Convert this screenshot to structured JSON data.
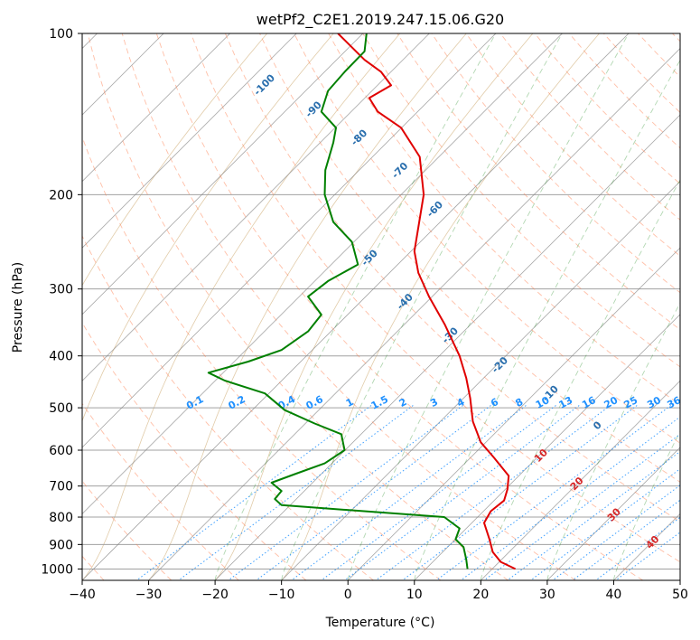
{
  "chart_data": {
    "type": "line",
    "subtype": "skew-t log-p diagram",
    "title": "wetPf2_C2E1.2019.247.15.06.G20",
    "xlabel": "Temperature (°C)",
    "ylabel": "Pressure (hPa)",
    "xlim": [
      -40,
      50
    ],
    "ylim": [
      1050,
      100
    ],
    "y_scale": "log",
    "x_ticks": [
      "−40",
      "−30",
      "−20",
      "−10",
      "0",
      "10",
      "20",
      "30",
      "40",
      "50"
    ],
    "x_tick_values": [
      -40,
      -30,
      -20,
      -10,
      0,
      10,
      20,
      30,
      40,
      50
    ],
    "y_ticks": [
      "100",
      "200",
      "300",
      "400",
      "500",
      "600",
      "700",
      "800",
      "900",
      "1000"
    ],
    "y_tick_values": [
      100,
      200,
      300,
      400,
      500,
      600,
      700,
      800,
      900,
      1000
    ],
    "grid": true,
    "series": [
      {
        "color": "#e00000",
        "points": [
          [
            25.2,
            1000
          ],
          [
            23.0,
            970
          ],
          [
            21.8,
            930
          ],
          [
            21.3,
            880
          ],
          [
            20.5,
            820
          ],
          [
            21.5,
            780
          ],
          [
            23.5,
            745
          ],
          [
            24.0,
            710
          ],
          [
            24.2,
            670
          ],
          [
            22.0,
            620
          ],
          [
            20.0,
            580
          ],
          [
            18.8,
            530
          ],
          [
            18.4,
            480
          ],
          [
            17.8,
            440
          ],
          [
            16.8,
            400
          ],
          [
            14.6,
            350
          ],
          [
            12.2,
            310
          ],
          [
            10.6,
            280
          ],
          [
            10.0,
            255
          ],
          [
            10.6,
            230
          ],
          [
            11.4,
            200
          ],
          [
            10.8,
            170
          ],
          [
            8.0,
            150
          ],
          [
            4.5,
            140
          ],
          [
            3.2,
            132
          ],
          [
            6.5,
            125
          ],
          [
            5.0,
            118
          ],
          [
            2.5,
            112
          ],
          [
            -1.5,
            100
          ]
        ]
      },
      {
        "color": "#008000",
        "points": [
          [
            18.0,
            1000
          ],
          [
            17.8,
            960
          ],
          [
            17.4,
            910
          ],
          [
            16.2,
            880
          ],
          [
            16.8,
            840
          ],
          [
            14.5,
            800
          ],
          [
            -10.0,
            760
          ],
          [
            -11.0,
            740
          ],
          [
            -10.0,
            715
          ],
          [
            -11.5,
            690
          ],
          [
            -8.0,
            665
          ],
          [
            -3.5,
            635
          ],
          [
            -0.5,
            600
          ],
          [
            -1.0,
            560
          ],
          [
            -5.0,
            535
          ],
          [
            -9.5,
            505
          ],
          [
            -12.5,
            470
          ],
          [
            -18.5,
            445
          ],
          [
            -21.0,
            430
          ],
          [
            -15.0,
            410
          ],
          [
            -10.0,
            390
          ],
          [
            -6.0,
            360
          ],
          [
            -4.0,
            335
          ],
          [
            -6.0,
            310
          ],
          [
            -3.0,
            290
          ],
          [
            1.5,
            270
          ],
          [
            0.6,
            245
          ],
          [
            -2.2,
            225
          ],
          [
            -3.5,
            200
          ],
          [
            -3.4,
            180
          ],
          [
            -2.2,
            160
          ],
          [
            -1.8,
            150
          ],
          [
            -4.0,
            140
          ],
          [
            -3.0,
            128
          ],
          [
            -0.5,
            118
          ],
          [
            2.5,
            108
          ],
          [
            2.8,
            100
          ]
        ]
      }
    ],
    "reference_lines": {
      "isotherms": {
        "color": "#808080",
        "style": "solid"
      },
      "isobars": {
        "color": "#a0a0a0",
        "style": "solid"
      },
      "dry_adiabats": {
        "color": "#ff7f50",
        "style": "dashed"
      },
      "moist_adiabats": {
        "color": "#228b22",
        "style": "dashed"
      },
      "mixing_ratio": {
        "color": "#1e90ff",
        "style": "dotted"
      },
      "theta_e_background": {
        "color": "#c8a060",
        "style": "solid"
      }
    },
    "annotations": {
      "wet_bulb_isotherms": {
        "color": "#2a6fae",
        "items": [
          {
            "label": "-100",
            "t": -100,
            "p": 126
          },
          {
            "label": "-90",
            "t": -90,
            "p": 140
          },
          {
            "label": "-80",
            "t": -80,
            "p": 158
          },
          {
            "label": "-70",
            "t": -70,
            "p": 182
          },
          {
            "label": "-60",
            "t": -60,
            "p": 215
          },
          {
            "label": "-50",
            "t": -50,
            "p": 265
          },
          {
            "label": "-40",
            "t": -40,
            "p": 320
          },
          {
            "label": "-30",
            "t": -30,
            "p": 370
          },
          {
            "label": "-20",
            "t": -20,
            "p": 420
          },
          {
            "label": "-10",
            "t": -10,
            "p": 475
          },
          {
            "label": "0",
            "t": 0,
            "p": 545
          }
        ]
      },
      "mixing_ratio_labels": {
        "color": "#1e90ff",
        "pressure": 495,
        "items": [
          {
            "label": "0.1",
            "x": -22.8
          },
          {
            "label": "0.2",
            "x": -16.5
          },
          {
            "label": "0.4",
            "x": -9.0
          },
          {
            "label": "0.6",
            "x": -4.8
          },
          {
            "label": "1",
            "x": 0.5
          },
          {
            "label": "1.5",
            "x": 5.0
          },
          {
            "label": "2",
            "x": 8.5
          },
          {
            "label": "3",
            "x": 13.2
          },
          {
            "label": "4",
            "x": 17.2
          },
          {
            "label": "6",
            "x": 22.3
          },
          {
            "label": "8",
            "x": 26.0
          },
          {
            "label": "10",
            "x": 29.5
          },
          {
            "label": "13",
            "x": 33.0
          },
          {
            "label": "16",
            "x": 36.5
          },
          {
            "label": "20",
            "x": 39.8
          },
          {
            "label": "25",
            "x": 42.8
          },
          {
            "label": "30",
            "x": 46.3
          },
          {
            "label": "36",
            "x": 49.3
          }
        ]
      },
      "moist_labels": {
        "color": "#d62728",
        "items": [
          {
            "label": "10",
            "x": 29.4,
            "p": 620
          },
          {
            "label": "20",
            "x": 34.8,
            "p": 700
          },
          {
            "label": "30",
            "x": 40.4,
            "p": 800
          },
          {
            "label": "40",
            "x": 46.2,
            "p": 900
          }
        ]
      }
    }
  }
}
